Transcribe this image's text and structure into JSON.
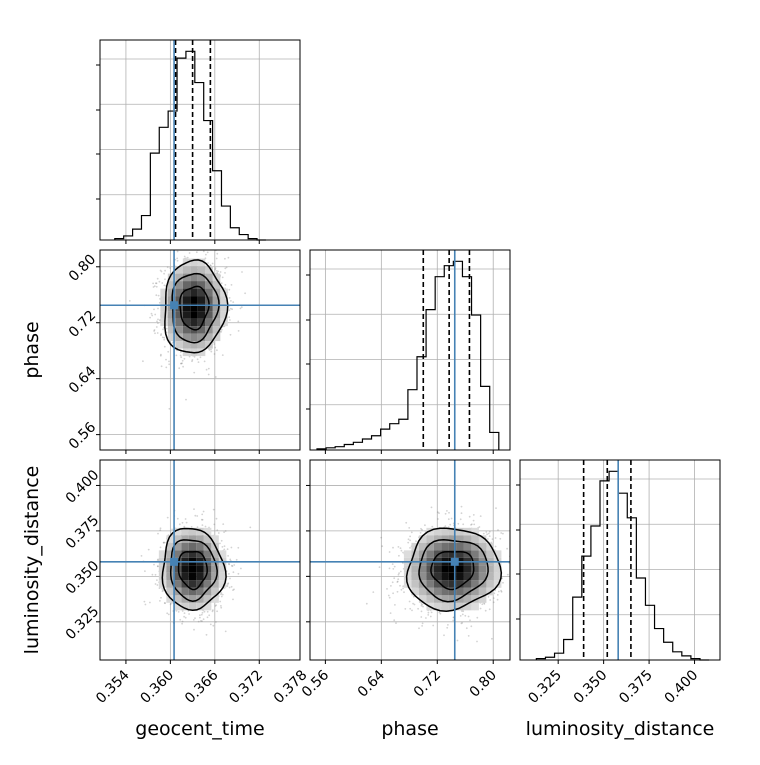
{
  "figure": {
    "type": "corner",
    "parameters": [
      "geocent_time",
      "phase",
      "luminosity_distance"
    ],
    "axis_labels": {
      "geocent_time": "geocent_time",
      "phase": "phase",
      "luminosity_distance": "luminosity_distance"
    },
    "colors": {
      "truth": "#4682b4",
      "hist": "#000000",
      "grid": "#b0b0b0",
      "scatter": "#808080"
    }
  },
  "chart_data": {
    "type": "corner",
    "grid": true,
    "truths": {
      "geocent_time": 0.3605,
      "phase": 0.745,
      "luminosity_distance": 0.358
    },
    "quantiles": {
      "geocent_time": [
        0.3607,
        0.363,
        0.3654
      ],
      "phase": [
        0.7,
        0.737,
        0.766
      ],
      "luminosity_distance": [
        0.339,
        0.352,
        0.365
      ]
    },
    "ranges": {
      "geocent_time": [
        0.3505,
        0.3775
      ],
      "phase": [
        0.538,
        0.824
      ],
      "luminosity_distance": [
        0.304,
        0.414
      ]
    },
    "ticks": {
      "geocent_time": [
        "0.354",
        "0.360",
        "0.366",
        "0.372",
        "0.378"
      ],
      "phase": [
        "0.56",
        "0.64",
        "0.72",
        "0.80"
      ],
      "luminosity_distance": [
        "0.325",
        "0.350",
        "0.375",
        "0.400"
      ],
      "phase_y": [
        "0.56",
        "0.64",
        "0.72",
        "0.80"
      ],
      "luminosity_distance_y": [
        "0.325",
        "0.350",
        "0.375",
        "0.400"
      ]
    },
    "histograms": {
      "geocent_time": {
        "edges": [
          0.3525,
          0.3537,
          0.3549,
          0.3561,
          0.3573,
          0.3585,
          0.3597,
          0.3609,
          0.3621,
          0.3633,
          0.3645,
          0.3657,
          0.3669,
          0.3681,
          0.3693,
          0.3705,
          0.3717,
          0.3729
        ],
        "counts": [
          1,
          3,
          8,
          18,
          64,
          83,
          95,
          134,
          139,
          116,
          88,
          51,
          25,
          9,
          4,
          1,
          0
        ]
      },
      "phase": {
        "edges": [
          0.548,
          0.561,
          0.574,
          0.587,
          0.6,
          0.613,
          0.626,
          0.639,
          0.652,
          0.665,
          0.678,
          0.691,
          0.704,
          0.717,
          0.73,
          0.743,
          0.756,
          0.769,
          0.782,
          0.795,
          0.808
        ],
        "counts": [
          1,
          2,
          3,
          5,
          7,
          10,
          13,
          19,
          24,
          28,
          55,
          85,
          128,
          158,
          168,
          172,
          158,
          123,
          58,
          16
        ]
      },
      "luminosity_distance": {
        "edges": [
          0.313,
          0.318,
          0.323,
          0.328,
          0.333,
          0.338,
          0.343,
          0.348,
          0.353,
          0.358,
          0.363,
          0.368,
          0.373,
          0.378,
          0.383,
          0.388,
          0.393,
          0.398,
          0.403,
          0.408
        ],
        "counts": [
          1,
          2,
          5,
          15,
          46,
          76,
          98,
          131,
          138,
          122,
          104,
          60,
          40,
          23,
          13,
          6,
          3,
          1,
          0
        ]
      }
    },
    "posterior_2d": [
      {
        "x": "geocent_time",
        "y": "phase",
        "mean": [
          0.3632,
          0.742
        ],
        "std": [
          0.00215,
          0.034
        ],
        "rho": 0.05
      },
      {
        "x": "geocent_time",
        "y": "luminosity_distance",
        "mean": [
          0.363,
          0.354
        ],
        "std": [
          0.00215,
          0.0115
        ],
        "rho": -0.05
      },
      {
        "x": "phase",
        "y": "luminosity_distance",
        "mean": [
          0.742,
          0.354
        ],
        "std": [
          0.034,
          0.0115
        ],
        "rho": 0.05
      }
    ]
  }
}
